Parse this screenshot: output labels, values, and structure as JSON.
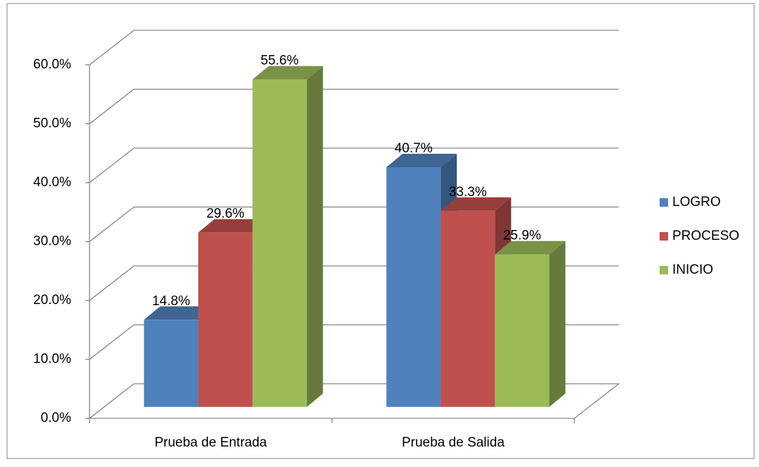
{
  "chart_data": {
    "type": "bar3d",
    "categories": [
      "Prueba de Entrada",
      "Prueba de Salida"
    ],
    "series": [
      {
        "name": "LOGRO",
        "color": "#4f81bd",
        "values": [
          14.8,
          40.7
        ],
        "value_labels": [
          "14.8%",
          "40.7%"
        ]
      },
      {
        "name": "PROCESO",
        "color": "#c0504d",
        "values": [
          29.6,
          33.3
        ],
        "value_labels": [
          "29.6%",
          "33.3%"
        ]
      },
      {
        "name": "INICIO",
        "color": "#9bbb59",
        "values": [
          55.6,
          25.9
        ],
        "value_labels": [
          "55.6%",
          "25.9%"
        ]
      }
    ],
    "ylim": [
      0,
      60
    ],
    "yticks": [
      {
        "value": 0,
        "label": "0.0%"
      },
      {
        "value": 10,
        "label": "10.0%"
      },
      {
        "value": 20,
        "label": "20.0%"
      },
      {
        "value": 30,
        "label": "30.0%"
      },
      {
        "value": 40,
        "label": "40.0%"
      },
      {
        "value": 50,
        "label": "50.0%"
      },
      {
        "value": 60,
        "label": "60.0%"
      }
    ],
    "grid": true,
    "legend": "right"
  }
}
